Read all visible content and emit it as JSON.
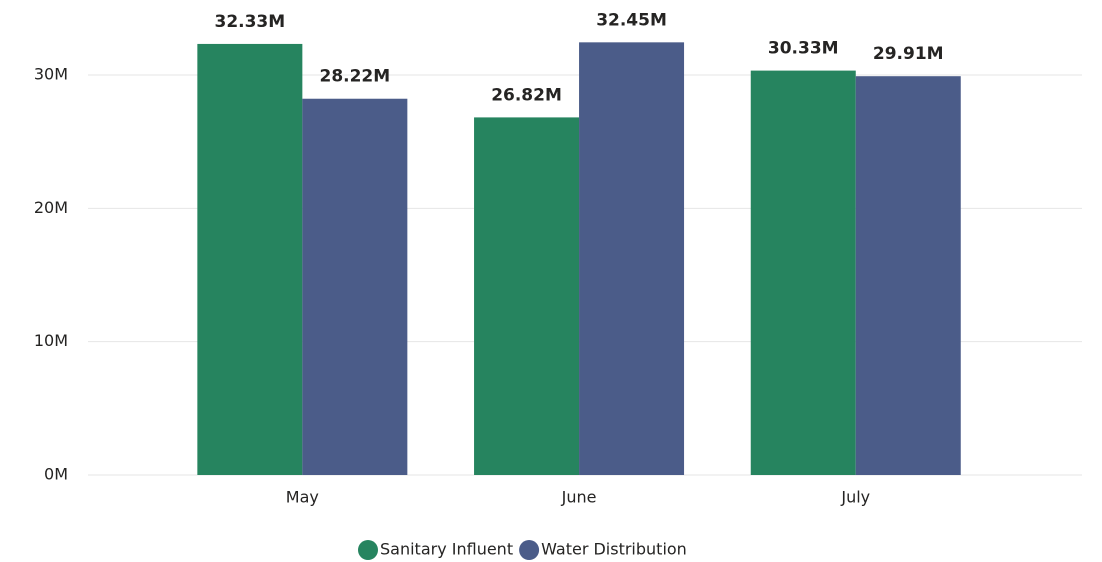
{
  "chart_data": {
    "type": "bar",
    "categories": [
      "May",
      "June",
      "July"
    ],
    "series": [
      {
        "name": "Sanitary Influent",
        "color": "#26845f",
        "values": [
          32.33,
          26.82,
          30.33
        ],
        "value_labels": [
          "32.33M",
          "26.82M",
          "30.33M"
        ]
      },
      {
        "name": "Water Distribution",
        "color": "#4b5c89",
        "values": [
          28.22,
          32.45,
          29.91
        ],
        "value_labels": [
          "28.22M",
          "32.45M",
          "29.91M"
        ]
      }
    ],
    "ylim": [
      0,
      33
    ],
    "yticks": [
      {
        "value": 0,
        "label": "0M"
      },
      {
        "value": 10,
        "label": "10M"
      },
      {
        "value": 20,
        "label": "20M"
      },
      {
        "value": 30,
        "label": "30M"
      }
    ],
    "grid": true,
    "legend": "bottom"
  }
}
